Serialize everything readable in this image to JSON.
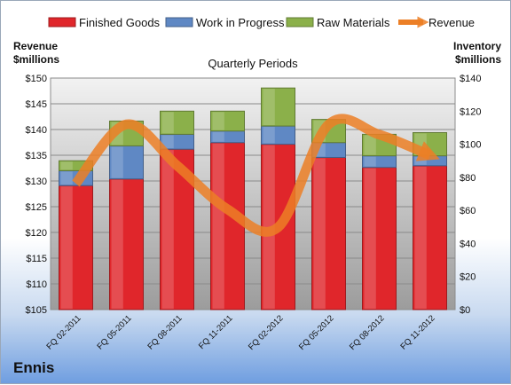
{
  "company": "Ennis",
  "chart_data": {
    "type": "bar",
    "stacked": true,
    "title": "Quarterly Periods",
    "left_axis_label": [
      "Revenue",
      "$millions"
    ],
    "right_axis_label": [
      "Inventory",
      "$millions"
    ],
    "categories": [
      "FQ 02-2011",
      "FQ 05-2011",
      "FQ 08-2011",
      "FQ 11-2011",
      "FQ 02-2012",
      "FQ 05-2012",
      "FQ 08-2012",
      "FQ 11-2012"
    ],
    "left_axis": {
      "min": 105,
      "max": 150,
      "step": 5,
      "tick_format": "${v}"
    },
    "right_axis": {
      "min": 0,
      "max": 140,
      "step": 20,
      "tick_format": "${v}"
    },
    "legend_position": "top",
    "gridlines": true,
    "series": [
      {
        "name": "Finished Goods",
        "axis": "right",
        "color": "#e0262b",
        "values": [
          75,
          79,
          97,
          101,
          100,
          92,
          86,
          87
        ]
      },
      {
        "name": "Work in Progress",
        "axis": "right",
        "color": "#5f88c4",
        "values": [
          9,
          20,
          9,
          7,
          11,
          9,
          7,
          6
        ]
      },
      {
        "name": "Raw Materials",
        "axis": "right",
        "color": "#8bb04a",
        "values": [
          6,
          15,
          14,
          12,
          23,
          14,
          13,
          14
        ]
      },
      {
        "name": "Revenue",
        "axis": "left",
        "type": "line",
        "color": "#ec7f26",
        "values": [
          129.5,
          141,
          133,
          124.5,
          121,
          141,
          139,
          135
        ]
      }
    ]
  }
}
